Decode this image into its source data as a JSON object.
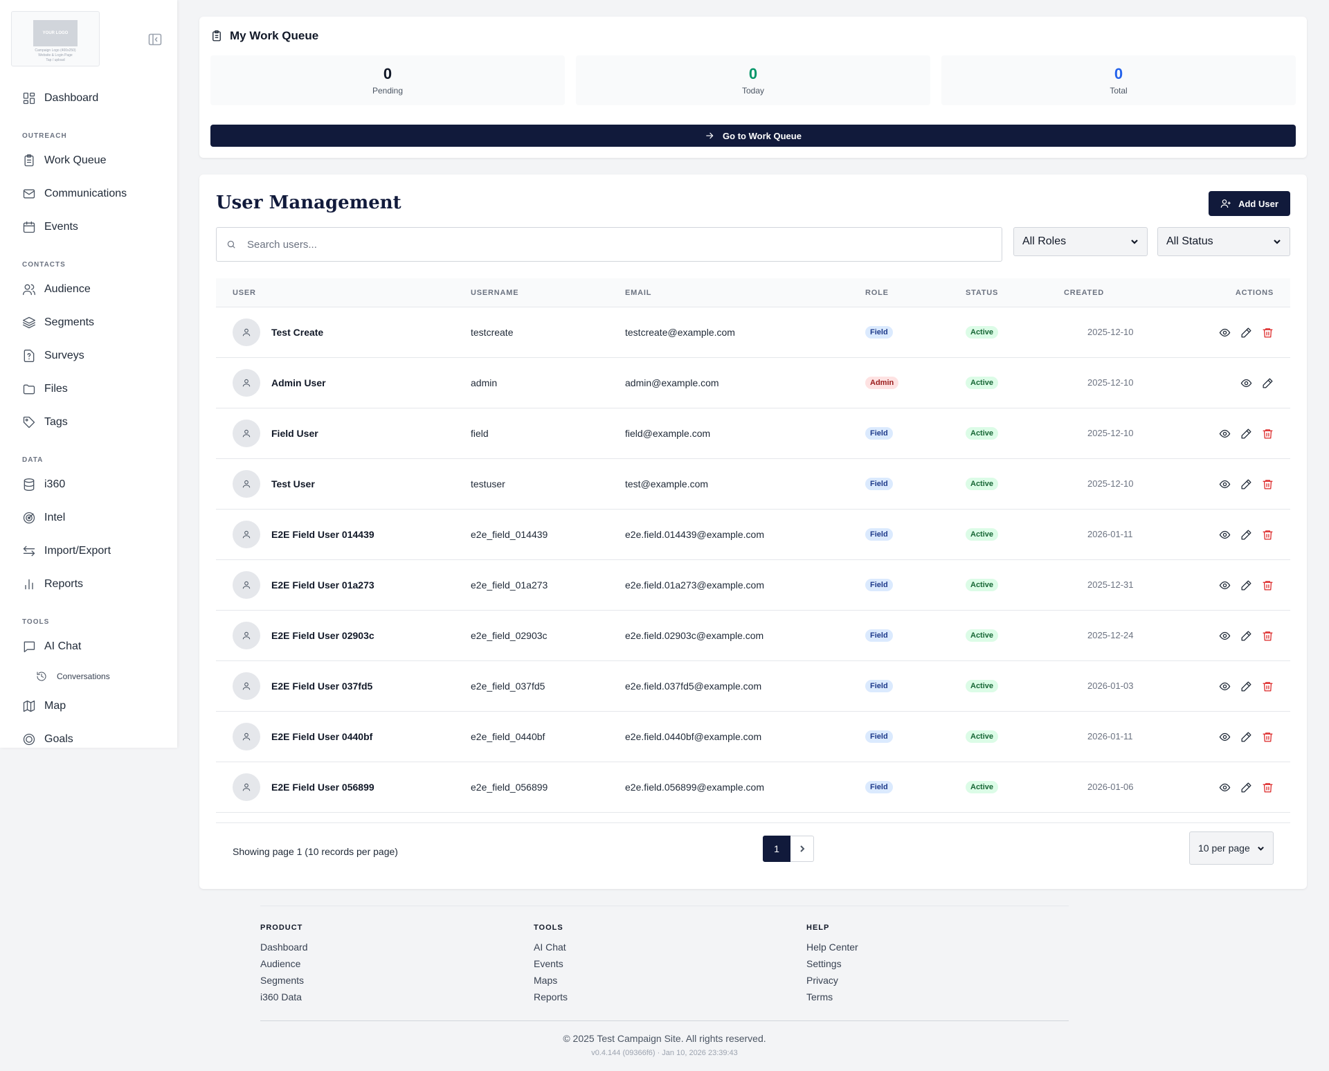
{
  "sidebar": {
    "logo": {
      "text": "YOUR LOGO",
      "caption_line1": "Campaign Logo (400x250)",
      "caption_line2": "Website & Login Page",
      "caption_line3": "Tap / upload"
    },
    "items": {
      "dashboard": "Dashboard",
      "section_outreach": "OUTREACH",
      "work_queue": "Work Queue",
      "communications": "Communications",
      "events": "Events",
      "section_contacts": "CONTACTS",
      "audience": "Audience",
      "segments": "Segments",
      "surveys": "Surveys",
      "files": "Files",
      "tags": "Tags",
      "section_data": "DATA",
      "i360": "i360",
      "intel": "Intel",
      "import_export": "Import/Export",
      "reports": "Reports",
      "section_tools": "TOOLS",
      "ai_chat": "AI Chat",
      "conversations": "Conversations",
      "map": "Map",
      "goals": "Goals"
    }
  },
  "work_queue": {
    "title": "My Work Queue",
    "stats": [
      {
        "value": "0",
        "label": "Pending",
        "color": "#111827"
      },
      {
        "value": "0",
        "label": "Today",
        "color": "#059669"
      },
      {
        "value": "0",
        "label": "Total",
        "color": "#2563eb"
      }
    ],
    "button": "Go to Work Queue"
  },
  "user_management": {
    "title": "User Management",
    "add_button": "Add User",
    "search_placeholder": "Search users...",
    "role_filter": "All Roles",
    "status_filter": "All Status",
    "columns": [
      "USER",
      "USERNAME",
      "EMAIL",
      "ROLE",
      "STATUS",
      "CREATED",
      "ACTIONS"
    ],
    "rows": [
      {
        "name": "Test Create",
        "username": "testcreate",
        "email": "testcreate@example.com",
        "role": "Field",
        "status": "Active",
        "created": "2025-12-10",
        "deletable": true
      },
      {
        "name": "Admin User",
        "username": "admin",
        "email": "admin@example.com",
        "role": "Admin",
        "status": "Active",
        "created": "2025-12-10",
        "deletable": false
      },
      {
        "name": "Field User",
        "username": "field",
        "email": "field@example.com",
        "role": "Field",
        "status": "Active",
        "created": "2025-12-10",
        "deletable": true
      },
      {
        "name": "Test User",
        "username": "testuser",
        "email": "test@example.com",
        "role": "Field",
        "status": "Active",
        "created": "2025-12-10",
        "deletable": true
      },
      {
        "name": "E2E Field User 014439",
        "username": "e2e_field_014439",
        "email": "e2e.field.014439@example.com",
        "role": "Field",
        "status": "Active",
        "created": "2026-01-11",
        "deletable": true
      },
      {
        "name": "E2E Field User 01a273",
        "username": "e2e_field_01a273",
        "email": "e2e.field.01a273@example.com",
        "role": "Field",
        "status": "Active",
        "created": "2025-12-31",
        "deletable": true
      },
      {
        "name": "E2E Field User 02903c",
        "username": "e2e_field_02903c",
        "email": "e2e.field.02903c@example.com",
        "role": "Field",
        "status": "Active",
        "created": "2025-12-24",
        "deletable": true
      },
      {
        "name": "E2E Field User 037fd5",
        "username": "e2e_field_037fd5",
        "email": "e2e.field.037fd5@example.com",
        "role": "Field",
        "status": "Active",
        "created": "2026-01-03",
        "deletable": true
      },
      {
        "name": "E2E Field User 0440bf",
        "username": "e2e_field_0440bf",
        "email": "e2e.field.0440bf@example.com",
        "role": "Field",
        "status": "Active",
        "created": "2026-01-11",
        "deletable": true
      },
      {
        "name": "E2E Field User 056899",
        "username": "e2e_field_056899",
        "email": "e2e.field.056899@example.com",
        "role": "Field",
        "status": "Active",
        "created": "2026-01-06",
        "deletable": true
      }
    ],
    "pagination": {
      "info": "Showing page 1 (10 records per page)",
      "current_page": "1",
      "per_page": "10 per page"
    }
  },
  "footer": {
    "columns": [
      {
        "heading": "PRODUCT",
        "links": [
          "Dashboard",
          "Audience",
          "Segments",
          "i360 Data"
        ]
      },
      {
        "heading": "TOOLS",
        "links": [
          "AI Chat",
          "Events",
          "Maps",
          "Reports"
        ]
      },
      {
        "heading": "HELP",
        "links": [
          "Help Center",
          "Settings",
          "Privacy",
          "Terms"
        ]
      }
    ],
    "copyright": "© 2025 Test Campaign Site. All rights reserved.",
    "version": "v0.4.144 (09366f6) · Jan 10, 2026 23:39:43"
  }
}
